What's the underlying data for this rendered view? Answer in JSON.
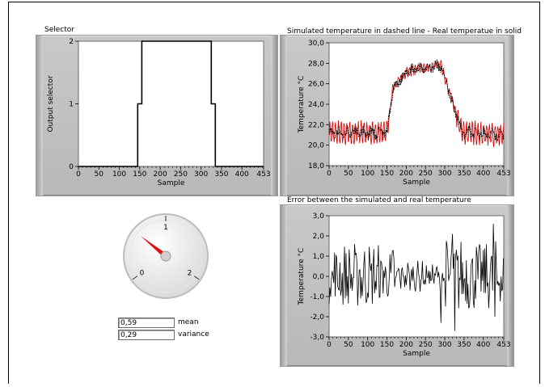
{
  "labels": {
    "selector_title": "Selector",
    "temp_title": "Simulated temperature in dashed line - Real temperatue in solid",
    "error_title": "Error between the simulated and real temperature"
  },
  "selector_chart": {
    "ylabel": "Output selector",
    "xlabel": "Sample",
    "xticks": [
      "0",
      "50",
      "100",
      "150",
      "200",
      "250",
      "300",
      "350",
      "400",
      "453"
    ],
    "yticks": [
      "0",
      "1",
      "2"
    ]
  },
  "temp_chart": {
    "ylabel": "Temperature °C",
    "xlabel": "Sample",
    "xticks": [
      "0",
      "50",
      "100",
      "150",
      "200",
      "250",
      "300",
      "350",
      "400",
      "453"
    ],
    "yticks": [
      "18,0",
      "20,0",
      "22,0",
      "24,0",
      "26,0",
      "28,0",
      "30,0"
    ]
  },
  "error_chart": {
    "ylabel": "Temperature °C",
    "xlabel": "Sample",
    "xticks": [
      "0",
      "50",
      "100",
      "150",
      "200",
      "250",
      "300",
      "350",
      "400",
      "453"
    ],
    "yticks": [
      "-3,0",
      "-2,0",
      "-1,0",
      "0,0",
      "1,0",
      "2,0",
      "3,0"
    ]
  },
  "gauge": {
    "tick_labels": [
      "0",
      "1",
      "2"
    ],
    "value": 0.59,
    "min": 0,
    "max": 2
  },
  "stats": {
    "mean_value": "0,59",
    "mean_label": "mean",
    "variance_value": "0,29",
    "variance_label": "variance"
  },
  "colors": {
    "real": "#e00000",
    "simulated": "#000000",
    "needle": "#e01010"
  },
  "chart_data": [
    {
      "type": "line",
      "title": "Selector",
      "xlabel": "Sample",
      "ylabel": "Output selector",
      "xlim": [
        0,
        453
      ],
      "ylim": [
        0,
        2
      ],
      "series": [
        {
          "x": [
            0,
            145,
            145,
            155,
            155,
            325,
            325,
            335,
            335,
            453
          ],
          "y": [
            0,
            0,
            1,
            1,
            2,
            2,
            1,
            1,
            0,
            0
          ]
        }
      ]
    },
    {
      "type": "line",
      "title": "Simulated temperature in dashed line - Real temperatue in solid",
      "xlabel": "Sample",
      "ylabel": "Temperature °C",
      "xlim": [
        0,
        453
      ],
      "ylim": [
        18,
        30
      ],
      "series_levels": {
        "x": [
          0,
          150,
          165,
          205,
          290,
          330,
          345,
          453
        ],
        "y": [
          21.2,
          21.2,
          25.5,
          27.3,
          27.8,
          23.0,
          21.3,
          21.0
        ]
      }
    },
    {
      "type": "line",
      "title": "Error between the simulated and real temperature",
      "xlabel": "Sample",
      "ylabel": "Temperature °C",
      "xlim": [
        0,
        453
      ],
      "ylim": [
        -3,
        3
      ],
      "min": -2.7,
      "max": 2.6
    }
  ]
}
